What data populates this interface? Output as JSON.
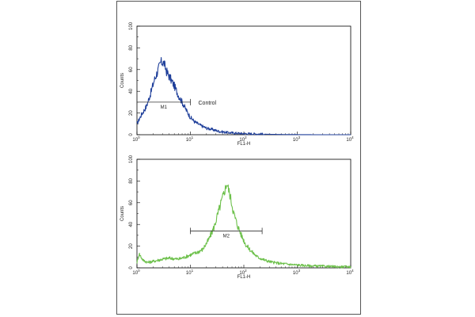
{
  "chart_data": [
    {
      "type": "line",
      "panel": "top",
      "xlabel": "FL1-H",
      "ylabel": "Counts",
      "xscale": "log",
      "xlim": [
        1,
        10000
      ],
      "ylim": [
        0,
        100
      ],
      "x_ticks": [
        {
          "base": "10",
          "exp": "0"
        },
        {
          "base": "10",
          "exp": "1"
        },
        {
          "base": "10",
          "exp": "2"
        },
        {
          "base": "10",
          "exp": "3"
        },
        {
          "base": "10",
          "exp": "4"
        }
      ],
      "y_ticks": [
        "0",
        "20",
        "40",
        "60",
        "80",
        "100"
      ],
      "series": [
        {
          "color": "#1f3f9a",
          "x": [
            1,
            1.2,
            1.5,
            1.8,
            2.1,
            2.5,
            2.8,
            3.2,
            3.6,
            4.2,
            5,
            6,
            7,
            8.5,
            10,
            12,
            15,
            20,
            25,
            35,
            50,
            70,
            100,
            150,
            200,
            300,
            500,
            1000,
            2000,
            5000,
            10000
          ],
          "y": [
            10,
            18,
            26,
            38,
            50,
            60,
            67,
            66,
            58,
            52,
            45,
            36,
            30,
            22,
            16,
            12,
            9,
            6,
            5,
            3,
            2,
            1.5,
            1,
            0.8,
            0.6,
            0.4,
            0.2,
            0.1,
            0,
            0,
            0
          ]
        }
      ],
      "gate": {
        "label": "M1",
        "x_start": 1,
        "x_end": 10,
        "y": 30
      },
      "annotation": "Control"
    },
    {
      "type": "line",
      "panel": "bottom",
      "xlabel": "FL1-H",
      "ylabel": "Counts",
      "xscale": "log",
      "xlim": [
        1,
        10000
      ],
      "ylim": [
        0,
        100
      ],
      "x_ticks": [
        {
          "base": "10",
          "exp": "0"
        },
        {
          "base": "10",
          "exp": "1"
        },
        {
          "base": "10",
          "exp": "2"
        },
        {
          "base": "10",
          "exp": "3"
        },
        {
          "base": "10",
          "exp": "4"
        }
      ],
      "y_ticks": [
        "0",
        "20",
        "40",
        "60",
        "80",
        "100"
      ],
      "series": [
        {
          "color": "#6cc04a",
          "x": [
            1,
            1.1,
            1.3,
            1.6,
            2,
            3,
            4,
            6,
            8,
            10,
            13,
            17,
            22,
            28,
            35,
            42,
            48,
            52,
            58,
            65,
            75,
            90,
            110,
            140,
            180,
            250,
            350,
            500,
            800,
            1500,
            3000,
            6000,
            10000
          ],
          "y": [
            5,
            13,
            7,
            5,
            6,
            8,
            9,
            8,
            10,
            12,
            14,
            17,
            26,
            38,
            55,
            68,
            78,
            72,
            62,
            50,
            40,
            30,
            21,
            15,
            10,
            7,
            5,
            4,
            3,
            2,
            1.5,
            1,
            1
          ]
        }
      ],
      "gate": {
        "label": "M2",
        "x_start": 10,
        "x_end": 220,
        "y": 34
      }
    }
  ]
}
